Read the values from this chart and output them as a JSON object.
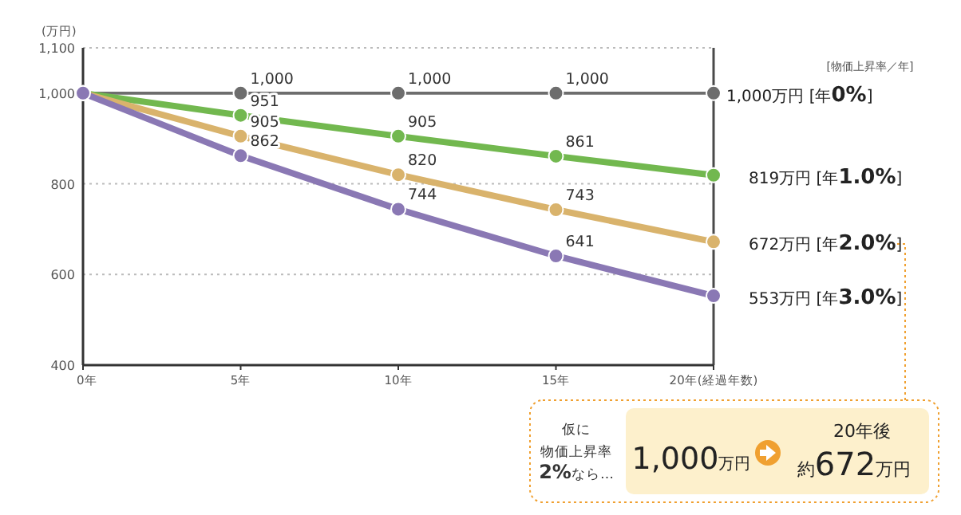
{
  "chart_data": {
    "type": "line",
    "ylabel": "(万円)",
    "legend_title": "[物価上昇率／年]",
    "x": [
      0,
      5,
      10,
      15,
      20
    ],
    "xlim": [
      0,
      20
    ],
    "xticks": [
      {
        "value": 0,
        "label": "0年"
      },
      {
        "value": 5,
        "label": "5年"
      },
      {
        "value": 10,
        "label": "10年"
      },
      {
        "value": 15,
        "label": "15年"
      },
      {
        "value": 20,
        "label": "20年(経過年数)"
      }
    ],
    "ylim": [
      400,
      1100
    ],
    "yticks": [
      400,
      600,
      800,
      {
        "value": 1000,
        "label": "1,000"
      },
      {
        "value": 1100,
        "label": "1,100"
      }
    ],
    "grid": "y",
    "marker": "circle",
    "line_style": "solid",
    "legend": "right",
    "ref_lines": [
      {
        "axis": "x",
        "value": 20,
        "color": "#4a4a4a"
      }
    ],
    "series": [
      {
        "name": "1,000万円 [年0%]",
        "color": "#6d6d6d",
        "values": [
          1000,
          1000,
          1000,
          1000,
          1000
        ],
        "value_labels": [
          null,
          "1,000",
          "1,000",
          "1,000",
          null
        ]
      },
      {
        "name": "819万円 [年1.0%]",
        "color": "#72b84f",
        "values": [
          1000,
          951,
          905,
          861,
          819
        ],
        "value_labels": [
          null,
          "951",
          "905",
          "861",
          null
        ]
      },
      {
        "name": "672万円 [年2.0%]",
        "color": "#d9b36c",
        "values": [
          1000,
          905,
          820,
          743,
          672
        ],
        "value_labels": [
          null,
          "905",
          "820",
          "743",
          null
        ]
      },
      {
        "name": "553万円 [年3.0%]",
        "color": "#8a78b4",
        "values": [
          1000,
          862,
          744,
          641,
          553
        ],
        "value_labels": [
          null,
          "862",
          "744",
          "641",
          null
        ]
      }
    ],
    "annotations": [
      "仮に",
      "物価上昇率",
      "2%なら…",
      "1,000万円",
      "20年後",
      "約672万円"
    ]
  }
}
